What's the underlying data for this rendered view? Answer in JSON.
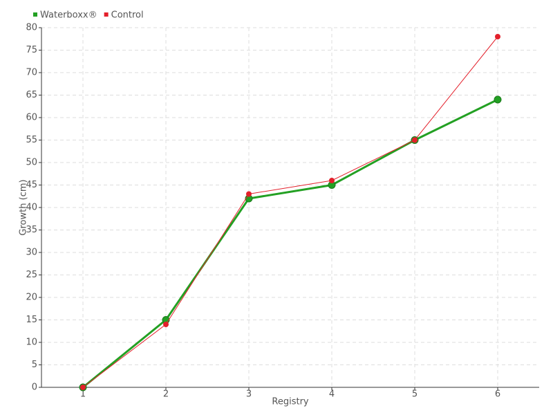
{
  "chart_data": {
    "type": "line",
    "x": [
      1,
      2,
      3,
      4,
      5,
      6
    ],
    "xlim": [
      0.5,
      6.5
    ],
    "xticks": [
      1,
      2,
      3,
      4,
      5,
      6
    ],
    "ylim": [
      0,
      80
    ],
    "yticks": [
      0,
      5,
      10,
      15,
      20,
      25,
      30,
      35,
      40,
      45,
      50,
      55,
      60,
      65,
      70,
      75,
      80
    ],
    "x_label": "Registry",
    "y_label": "Growth (cm)",
    "grid": true,
    "legend": "top-left",
    "series": [
      {
        "name": "Waterboxx®",
        "color": "#23a023",
        "values": [
          0,
          15,
          42,
          45,
          55,
          64
        ]
      },
      {
        "name": "Control",
        "color": "#e3202b",
        "values": [
          0,
          14,
          43,
          46,
          55,
          78
        ]
      }
    ]
  }
}
